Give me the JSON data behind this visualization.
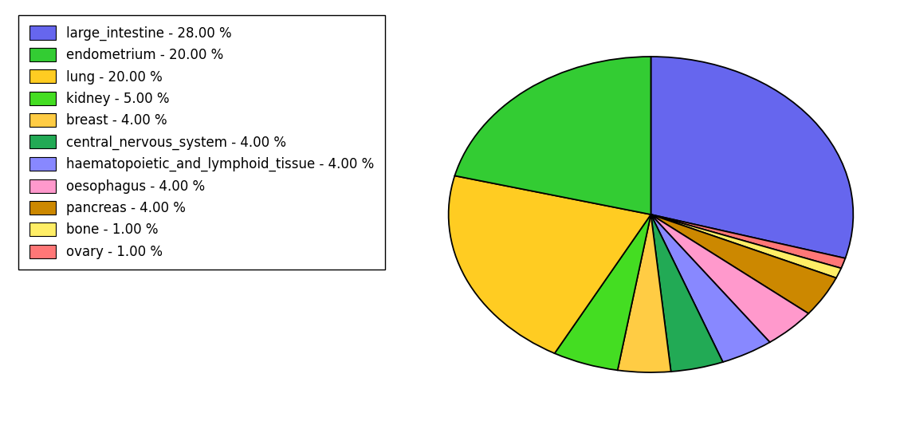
{
  "labels": [
    "large_intestine - 28.00 %",
    "endometrium - 20.00 %",
    "lung - 20.00 %",
    "kidney - 5.00 %",
    "breast - 4.00 %",
    "central_nervous_system - 4.00 %",
    "haematopoietic_and_lymphoid_tissue - 4.00 %",
    "oesophagus - 4.00 %",
    "pancreas - 4.00 %",
    "bone - 1.00 %",
    "ovary - 1.00 %"
  ],
  "values": [
    28,
    20,
    20,
    5,
    4,
    4,
    4,
    4,
    4,
    1,
    1
  ],
  "pie_order_labels": [
    "large_intestine",
    "ovary",
    "bone",
    "pancreas",
    "oesophagus",
    "haematopoietic_and_lymphoid_tissue",
    "central_nervous_system",
    "breast",
    "kidney",
    "lung",
    "endometrium"
  ],
  "pie_values": [
    28,
    1,
    1,
    4,
    4,
    4,
    4,
    4,
    5,
    20,
    20
  ],
  "pie_colors": [
    "#6666ee",
    "#ff7777",
    "#ffee66",
    "#cc8800",
    "#ff99cc",
    "#8888ff",
    "#22aa55",
    "#ffcc44",
    "#44dd22",
    "#ffcc22",
    "#33cc33"
  ],
  "legend_colors": [
    "#6666ee",
    "#33cc33",
    "#ffcc22",
    "#44dd22",
    "#ffcc44",
    "#22aa55",
    "#8888ff",
    "#ff99cc",
    "#cc8800",
    "#ffee66",
    "#ff7777"
  ],
  "figsize": [
    11.34,
    5.38
  ],
  "dpi": 100,
  "startangle": 90,
  "pie_aspect": 0.78
}
